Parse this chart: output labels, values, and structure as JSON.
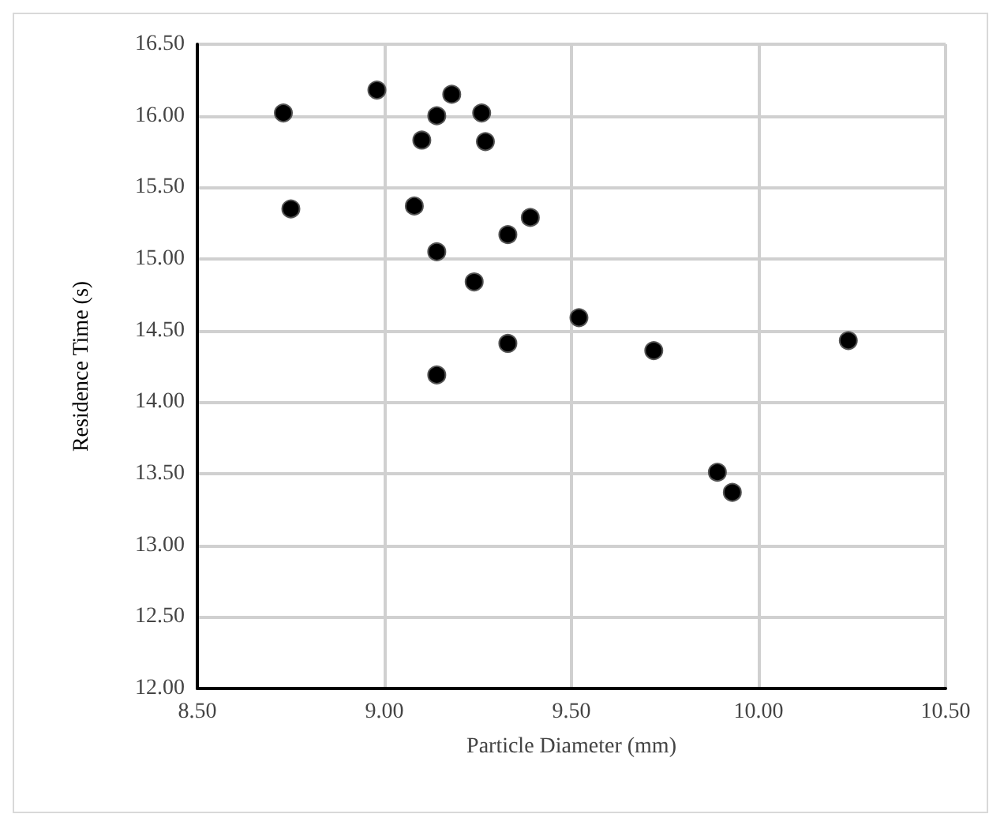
{
  "chart_data": {
    "type": "scatter",
    "xlabel": "Particle Diameter (mm)",
    "ylabel": "Residence Time (s)",
    "x": [
      8.73,
      8.98,
      9.18,
      9.14,
      9.26,
      9.1,
      9.27,
      8.75,
      9.08,
      9.39,
      9.33,
      9.14,
      9.24,
      9.52,
      9.33,
      9.14,
      9.72,
      10.24,
      9.89,
      9.93
    ],
    "series": [
      {
        "color": "#000000",
        "values": [
          16.02,
          16.18,
          16.15,
          16.0,
          16.02,
          15.83,
          15.82,
          15.35,
          15.37,
          15.29,
          15.17,
          15.05,
          14.84,
          14.59,
          14.41,
          14.19,
          14.36,
          14.43,
          13.51,
          13.37
        ]
      }
    ],
    "xlim": [
      8.5,
      10.5
    ],
    "xticks": [
      {
        "value": 8.5,
        "label": "8.50"
      },
      {
        "value": 9,
        "label": "9.00"
      },
      {
        "value": 9.5,
        "label": "9.50"
      },
      {
        "value": 10,
        "label": "10.00"
      },
      {
        "value": 10.5,
        "label": "10.50"
      }
    ],
    "ylim": [
      12,
      16.5
    ],
    "yticks": [
      {
        "value": 12,
        "label": "12.00"
      },
      {
        "value": 12.5,
        "label": "12.50"
      },
      {
        "value": 13,
        "label": "13.00"
      },
      {
        "value": 13.5,
        "label": "13.50"
      },
      {
        "value": 14,
        "label": "14.00"
      },
      {
        "value": 14.5,
        "label": "14.50"
      },
      {
        "value": 15,
        "label": "15.00"
      },
      {
        "value": 15.5,
        "label": "15.50"
      },
      {
        "value": 16,
        "label": "16.00"
      },
      {
        "value": 16.5,
        "label": "16.50"
      }
    ],
    "grid": true,
    "marker": "circle"
  }
}
